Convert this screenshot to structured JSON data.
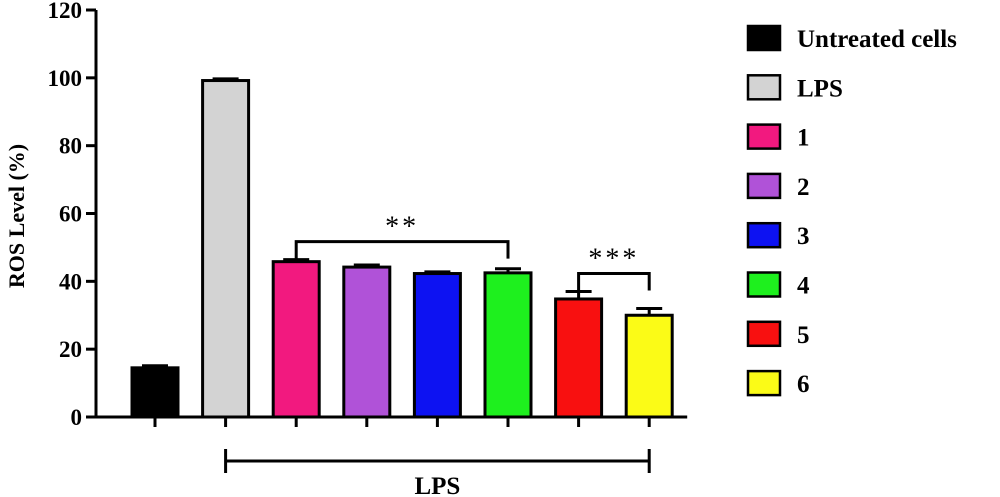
{
  "chart_data": {
    "type": "bar",
    "title": "",
    "ylabel": "ROS Level (%)",
    "ylim": [
      0,
      120
    ],
    "yticks": [
      0,
      20,
      40,
      60,
      80,
      100,
      120
    ],
    "grid": false,
    "legend_position": "right",
    "categories": [
      "Untreated cells",
      "LPS",
      "1",
      "2",
      "3",
      "4",
      "5",
      "6"
    ],
    "values": [
      14.5,
      99.2,
      45.8,
      44.2,
      42.3,
      42.5,
      34.8,
      30.0
    ],
    "errors": [
      0.6,
      0.5,
      0.6,
      0.6,
      0.5,
      1.2,
      2.2,
      2.0
    ],
    "colors": [
      "#000000",
      "#d3d3d3",
      "#f2197f",
      "#b052d8",
      "#0d12f2",
      "#1ef01e",
      "#f81010",
      "#fbfb17"
    ],
    "x_group_label": "LPS",
    "x_group_range": [
      "LPS",
      "6"
    ],
    "annotations": [
      {
        "text": "**",
        "from": "1",
        "to": "4"
      },
      {
        "text": "***",
        "from": "5",
        "to": "6"
      }
    ]
  }
}
